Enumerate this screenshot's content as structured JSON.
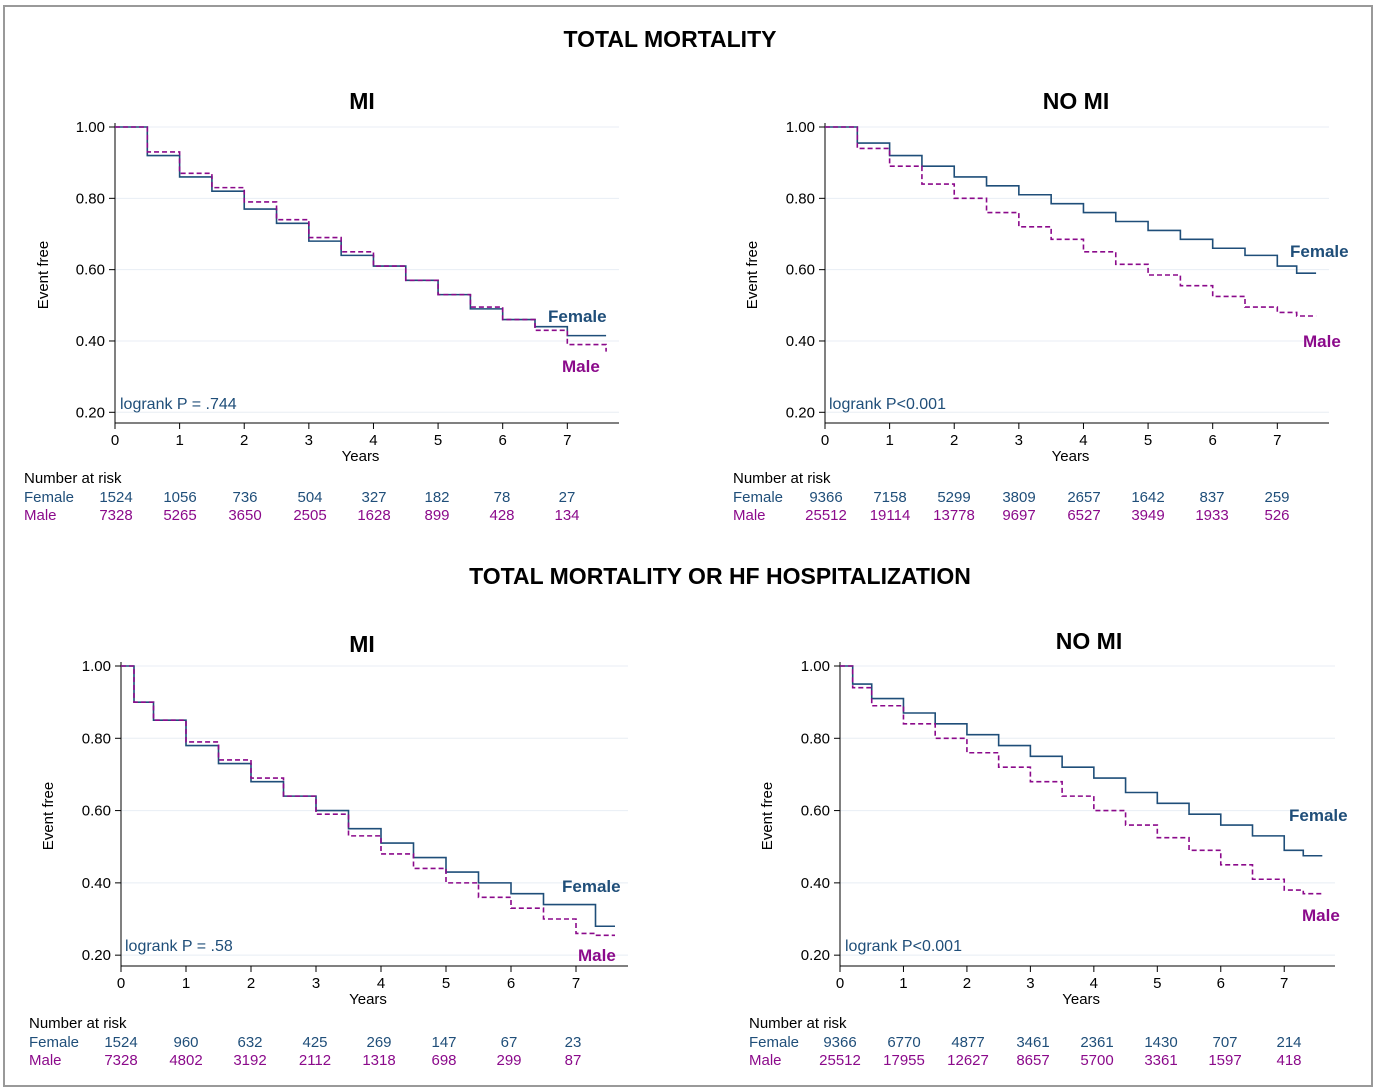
{
  "colors": {
    "female": "#1f4e79",
    "male": "#8b0a8b",
    "grid": "#e8eef4"
  },
  "sections": [
    "TOTAL MORTALITY",
    "TOTAL MORTALITY OR HF HOSPITALIZATION"
  ],
  "risk_header": "Number at risk",
  "chart_data": [
    {
      "type": "line",
      "section": "TOTAL MORTALITY",
      "title": "MI",
      "xlabel": "Years",
      "ylabel": "Event free",
      "xlim": [
        0,
        7.8
      ],
      "ylim": [
        0.17,
        1.0
      ],
      "yticks": [
        0.2,
        0.4,
        0.6,
        0.8,
        1.0
      ],
      "xticks": [
        0,
        1,
        2,
        3,
        4,
        5,
        6,
        7
      ],
      "annotation": "logrank P = .744",
      "series": [
        {
          "name": "Female",
          "x": [
            0,
            0.5,
            1,
            1.5,
            2,
            2.5,
            3,
            3.5,
            4,
            4.5,
            5,
            5.5,
            6,
            6.5,
            7,
            7.6
          ],
          "y": [
            1.0,
            0.92,
            0.86,
            0.82,
            0.77,
            0.73,
            0.68,
            0.64,
            0.61,
            0.57,
            0.53,
            0.49,
            0.46,
            0.44,
            0.415,
            0.415
          ]
        },
        {
          "name": "Male",
          "x": [
            0,
            0.5,
            1,
            1.5,
            2,
            2.5,
            3,
            3.5,
            4,
            4.5,
            5,
            5.5,
            6,
            6.5,
            7,
            7.6
          ],
          "y": [
            1.0,
            0.93,
            0.87,
            0.83,
            0.79,
            0.74,
            0.69,
            0.65,
            0.61,
            0.57,
            0.53,
            0.495,
            0.46,
            0.43,
            0.39,
            0.37
          ]
        }
      ],
      "risk": {
        "Female": [
          "1524",
          "1056",
          "736",
          "504",
          "327",
          "182",
          "78",
          "27"
        ],
        "Male": [
          "7328",
          "5265",
          "3650",
          "2505",
          "1628",
          "899",
          "428",
          "134"
        ]
      }
    },
    {
      "type": "line",
      "section": "TOTAL MORTALITY",
      "title": "NO MI",
      "xlabel": "Years",
      "ylabel": "Event free",
      "xlim": [
        0,
        7.8
      ],
      "ylim": [
        0.17,
        1.0
      ],
      "yticks": [
        0.2,
        0.4,
        0.6,
        0.8,
        1.0
      ],
      "xticks": [
        0,
        1,
        2,
        3,
        4,
        5,
        6,
        7
      ],
      "annotation": "logrank P<0.001",
      "series": [
        {
          "name": "Female",
          "x": [
            0,
            0.5,
            1,
            1.5,
            2,
            2.5,
            3,
            3.5,
            4,
            4.5,
            5,
            5.5,
            6,
            6.5,
            7,
            7.3,
            7.6
          ],
          "y": [
            1.0,
            0.955,
            0.92,
            0.89,
            0.86,
            0.835,
            0.81,
            0.785,
            0.76,
            0.735,
            0.71,
            0.685,
            0.66,
            0.64,
            0.61,
            0.59,
            0.59
          ]
        },
        {
          "name": "Male",
          "x": [
            0,
            0.5,
            1,
            1.5,
            2,
            2.5,
            3,
            3.5,
            4,
            4.5,
            5,
            5.5,
            6,
            6.5,
            7,
            7.3,
            7.6
          ],
          "y": [
            1.0,
            0.94,
            0.89,
            0.84,
            0.8,
            0.76,
            0.72,
            0.685,
            0.65,
            0.615,
            0.585,
            0.555,
            0.525,
            0.495,
            0.48,
            0.47,
            0.47
          ]
        }
      ],
      "risk": {
        "Female": [
          "9366",
          "7158",
          "5299",
          "3809",
          "2657",
          "1642",
          "837",
          "259"
        ],
        "Male": [
          "25512",
          "19114",
          "13778",
          "9697",
          "6527",
          "3949",
          "1933",
          "526"
        ]
      }
    },
    {
      "type": "line",
      "section": "TOTAL MORTALITY OR HF HOSPITALIZATION",
      "title": "MI",
      "xlabel": "Years",
      "ylabel": "Event free",
      "xlim": [
        0,
        7.8
      ],
      "ylim": [
        0.17,
        1.0
      ],
      "yticks": [
        0.2,
        0.4,
        0.6,
        0.8,
        1.0
      ],
      "xticks": [
        0,
        1,
        2,
        3,
        4,
        5,
        6,
        7
      ],
      "annotation": "logrank P = .58",
      "series": [
        {
          "name": "Female",
          "x": [
            0,
            0.2,
            0.5,
            1,
            1.5,
            2,
            2.5,
            3,
            3.5,
            4,
            4.5,
            5,
            5.5,
            6,
            6.5,
            7,
            7.3,
            7.6
          ],
          "y": [
            1.0,
            0.9,
            0.85,
            0.78,
            0.73,
            0.68,
            0.64,
            0.6,
            0.55,
            0.51,
            0.47,
            0.43,
            0.4,
            0.37,
            0.34,
            0.34,
            0.28,
            0.28
          ]
        },
        {
          "name": "Male",
          "x": [
            0,
            0.2,
            0.5,
            1,
            1.5,
            2,
            2.5,
            3,
            3.5,
            4,
            4.5,
            5,
            5.5,
            6,
            6.5,
            7,
            7.3,
            7.6
          ],
          "y": [
            1.0,
            0.9,
            0.85,
            0.79,
            0.74,
            0.69,
            0.64,
            0.59,
            0.53,
            0.48,
            0.44,
            0.4,
            0.36,
            0.33,
            0.3,
            0.26,
            0.255,
            0.255
          ]
        }
      ],
      "risk": {
        "Female": [
          "1524",
          "960",
          "632",
          "425",
          "269",
          "147",
          "67",
          "23"
        ],
        "Male": [
          "7328",
          "4802",
          "3192",
          "2112",
          "1318",
          "698",
          "299",
          "87"
        ]
      }
    },
    {
      "type": "line",
      "section": "TOTAL MORTALITY OR HF HOSPITALIZATION",
      "title": "NO MI",
      "xlabel": "Years",
      "ylabel": "Event free",
      "xlim": [
        0,
        7.8
      ],
      "ylim": [
        0.17,
        1.0
      ],
      "yticks": [
        0.2,
        0.4,
        0.6,
        0.8,
        1.0
      ],
      "xticks": [
        0,
        1,
        2,
        3,
        4,
        5,
        6,
        7
      ],
      "annotation": "logrank P<0.001",
      "series": [
        {
          "name": "Female",
          "x": [
            0,
            0.2,
            0.5,
            1,
            1.5,
            2,
            2.5,
            3,
            3.5,
            4,
            4.5,
            5,
            5.5,
            6,
            6.5,
            7,
            7.3,
            7.6
          ],
          "y": [
            1.0,
            0.95,
            0.91,
            0.87,
            0.84,
            0.81,
            0.78,
            0.75,
            0.72,
            0.69,
            0.65,
            0.62,
            0.59,
            0.56,
            0.53,
            0.49,
            0.475,
            0.475
          ]
        },
        {
          "name": "Male",
          "x": [
            0,
            0.2,
            0.5,
            1,
            1.5,
            2,
            2.5,
            3,
            3.5,
            4,
            4.5,
            5,
            5.5,
            6,
            6.5,
            7,
            7.3,
            7.6
          ],
          "y": [
            1.0,
            0.94,
            0.89,
            0.84,
            0.8,
            0.76,
            0.72,
            0.68,
            0.64,
            0.6,
            0.56,
            0.525,
            0.49,
            0.45,
            0.41,
            0.38,
            0.37,
            0.365
          ]
        }
      ],
      "risk": {
        "Female": [
          "9366",
          "6770",
          "4877",
          "3461",
          "2361",
          "1430",
          "707",
          "214"
        ],
        "Male": [
          "25512",
          "17955",
          "12627",
          "8657",
          "5700",
          "3361",
          "1597",
          "418"
        ]
      }
    }
  ]
}
